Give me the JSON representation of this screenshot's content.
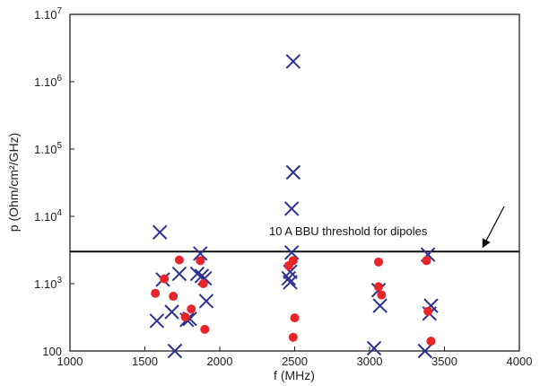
{
  "chart_data": {
    "type": "scatter",
    "xlabel": "f (MHz)",
    "ylabel": "p (Ohm/cm²/GHz)",
    "xlim": [
      1000,
      4000
    ],
    "ylim": [
      100,
      10000000
    ],
    "y_scale": "log",
    "grid": false,
    "x_ticks": [
      {
        "value": 1000,
        "label": "1000"
      },
      {
        "value": 1500,
        "label": "1500"
      },
      {
        "value": 2000,
        "label": "2000"
      },
      {
        "value": 2500,
        "label": "2500"
      },
      {
        "value": 3000,
        "label": "3000"
      },
      {
        "value": 3500,
        "label": "3500"
      },
      {
        "value": 4000,
        "label": "4000"
      }
    ],
    "y_ticks": [
      {
        "value": 100,
        "label": "100"
      },
      {
        "value": 1000,
        "mantissa": "1.10",
        "exp": "3"
      },
      {
        "value": 10000,
        "mantissa": "1.10",
        "exp": "4"
      },
      {
        "value": 100000,
        "mantissa": "1.10",
        "exp": "5"
      },
      {
        "value": 1000000,
        "mantissa": "1.10",
        "exp": "6"
      },
      {
        "value": 10000000,
        "mantissa": "1.10",
        "exp": "7"
      }
    ],
    "threshold": {
      "y": 3000,
      "label": "10 A  BBU threshold for dipoles"
    },
    "series": [
      {
        "marker": "x",
        "color": "#2e3192",
        "points": [
          [
            1600,
            5800
          ],
          [
            1620,
            1150
          ],
          [
            1580,
            280
          ],
          [
            1680,
            380
          ],
          [
            1700,
            100
          ],
          [
            1730,
            1400
          ],
          [
            1780,
            290
          ],
          [
            1800,
            300
          ],
          [
            1850,
            1400
          ],
          [
            1870,
            2800
          ],
          [
            1880,
            1300
          ],
          [
            1900,
            1200
          ],
          [
            1910,
            550
          ],
          [
            2490,
            2000000
          ],
          [
            2490,
            45000
          ],
          [
            2480,
            13000
          ],
          [
            2480,
            2900
          ],
          [
            2470,
            1500
          ],
          [
            2460,
            1200
          ],
          [
            2470,
            1050
          ],
          [
            3030,
            110
          ],
          [
            3060,
            800
          ],
          [
            3070,
            470
          ],
          [
            3370,
            100
          ],
          [
            3390,
            2700
          ],
          [
            3410,
            470
          ],
          [
            3400,
            360
          ]
        ]
      },
      {
        "marker": "dot",
        "color": "#e8262a",
        "points": [
          [
            1570,
            720
          ],
          [
            1630,
            1180
          ],
          [
            1690,
            650
          ],
          [
            1730,
            2250
          ],
          [
            1770,
            320
          ],
          [
            1810,
            420
          ],
          [
            1870,
            2200
          ],
          [
            1890,
            1000
          ],
          [
            1900,
            210
          ],
          [
            2460,
            1850
          ],
          [
            2490,
            2200
          ],
          [
            2500,
            310
          ],
          [
            2490,
            160
          ],
          [
            3060,
            2100
          ],
          [
            3060,
            900
          ],
          [
            3080,
            680
          ],
          [
            3380,
            2200
          ],
          [
            3390,
            390
          ],
          [
            3410,
            140
          ]
        ]
      }
    ]
  }
}
